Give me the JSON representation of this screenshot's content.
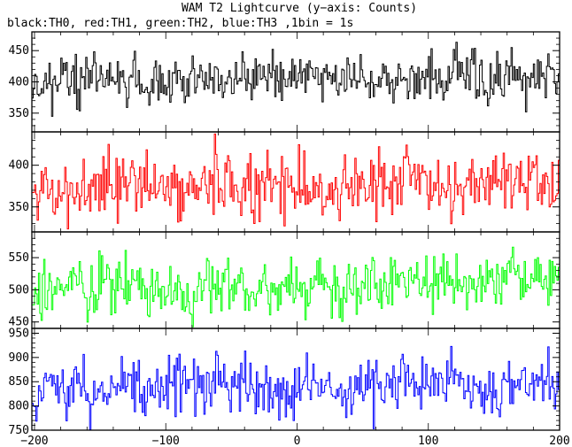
{
  "chart": {
    "title": "WAM T2 Lightcurve (y−axis: Counts)",
    "subtitle": "black:TH0, red:TH1, green:TH2, blue:TH3 ,1bin = 1s"
  },
  "chart_data": {
    "type": "line",
    "title": "WAM T2 Lightcurve (y−axis: Counts)",
    "subtitle": "black:TH0, red:TH1, green:TH2, blue:TH3 ,1bin = 1s",
    "x_range": [
      -202,
      200
    ],
    "x_ticks": [
      -200,
      -100,
      0,
      100,
      200
    ],
    "x_tick_labels": [
      "−200",
      "−100",
      "0",
      "100",
      "200"
    ],
    "panels": [
      {
        "name": "TH0",
        "color": "#000000",
        "ylim": [
          320,
          480
        ],
        "yticks": [
          350,
          400,
          450
        ],
        "mean": 398,
        "noise": 19,
        "trend": 12,
        "seed": 11
      },
      {
        "name": "TH1",
        "color": "#ff0000",
        "ylim": [
          320,
          440
        ],
        "yticks": [
          350,
          400
        ],
        "mean": 372,
        "noise": 20,
        "trend": 10,
        "seed": 23
      },
      {
        "name": "TH2",
        "color": "#00ff00",
        "ylim": [
          440,
          590
        ],
        "yticks": [
          450,
          500,
          550
        ],
        "mean": 500,
        "noise": 24,
        "trend": 16,
        "seed": 37
      },
      {
        "name": "TH3",
        "color": "#0000ff",
        "ylim": [
          750,
          960
        ],
        "yticks": [
          750,
          800,
          850,
          900,
          950
        ],
        "mean": 838,
        "noise": 30,
        "trend": 14,
        "seed": 53
      }
    ]
  }
}
